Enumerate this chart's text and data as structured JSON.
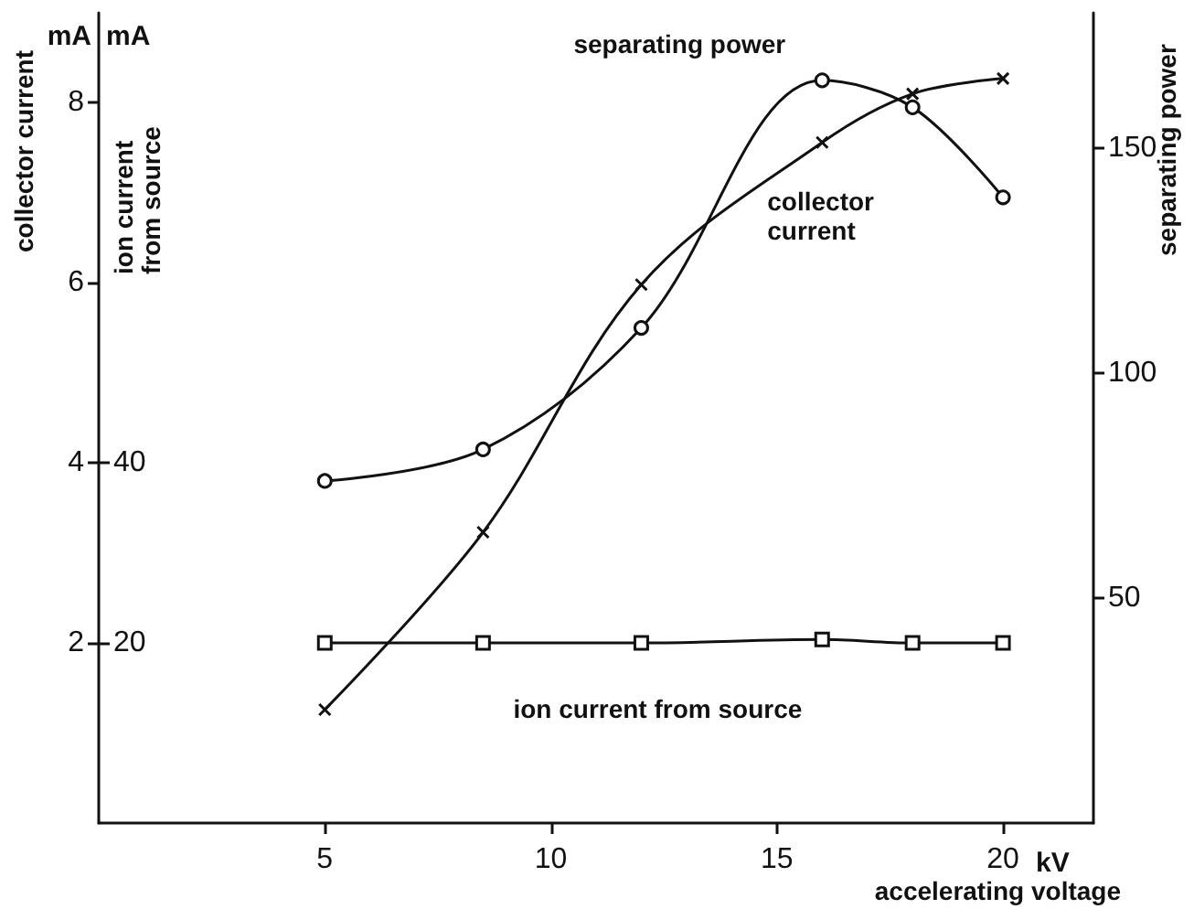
{
  "chart_data": {
    "type": "line",
    "xlabel": "accelerating voltage",
    "ylabel": "collector current",
    "y2label": "separating power",
    "y3label": "ion current from source",
    "annotations": [
      "mA",
      "mA",
      "kV"
    ],
    "xlim": [
      0,
      22
    ],
    "xticks": [
      5,
      10,
      15,
      20
    ],
    "ylim": [
      0,
      9
    ],
    "yticks": [
      2,
      4,
      6,
      8
    ],
    "y2lim": [
      0,
      180
    ],
    "y2ticks": [
      50,
      100,
      150
    ],
    "y3lim": [
      0,
      90
    ],
    "y3ticks": [
      20,
      40
    ],
    "grid": false,
    "legend": false,
    "line_style": "solid",
    "series": [
      {
        "name": "separating power",
        "color": "#111111",
        "axis": "y2",
        "marker": "circle",
        "x": [
          5,
          8.5,
          12,
          16,
          18,
          20
        ],
        "values": [
          76,
          83,
          110,
          165,
          159,
          139
        ]
      },
      {
        "name": "collector current",
        "color": "#111111",
        "axis": "y",
        "marker": "cross",
        "x": [
          5,
          8.5,
          12,
          16,
          18,
          20
        ],
        "values": [
          1.26,
          3.23,
          5.98,
          7.56,
          8.1,
          8.27
        ]
      },
      {
        "name": "ion current from source",
        "color": "#111111",
        "axis": "y3",
        "marker": "square",
        "x": [
          5,
          8.5,
          12,
          16,
          18,
          20
        ],
        "values": [
          20,
          20,
          20,
          20.4,
          20,
          20
        ]
      }
    ]
  }
}
